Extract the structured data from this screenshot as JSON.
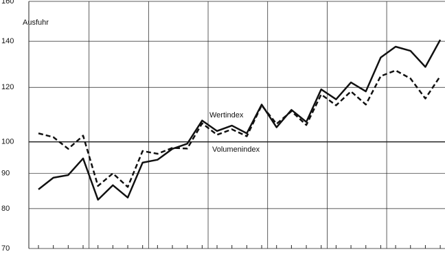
{
  "chart_data": {
    "type": "line",
    "title": "Ausfuhr",
    "categories": [
      null,
      null,
      null,
      null,
      null,
      null,
      null,
      null,
      null,
      null,
      null,
      null,
      null,
      null,
      null,
      null,
      null,
      null,
      null,
      null,
      null,
      null,
      null,
      null,
      null,
      null,
      null,
      null
    ],
    "series": [
      {
        "name": "Wertindex",
        "color": "#111111",
        "dash": false,
        "values": [
          85.3,
          88.7,
          89.5,
          94.6,
          82.4,
          86.5,
          83,
          93.3,
          94.2,
          97.7,
          99.4,
          107.4,
          103.7,
          105.6,
          102.9,
          113.3,
          105,
          111.3,
          106.9,
          119.2,
          115.3,
          122,
          118.4,
          132.6,
          137.5,
          135.6,
          128.5,
          140.7
        ]
      },
      {
        "name": "Volumenindex",
        "color": "#111111",
        "dash": true,
        "values": [
          102.9,
          101.6,
          97.7,
          102.1,
          86.3,
          90,
          86,
          97,
          96.1,
          98,
          97.8,
          106.4,
          102.4,
          104.3,
          101.9,
          113,
          106.2,
          110.8,
          105.8,
          117.2,
          113,
          118.4,
          113.3,
          124.6,
          127,
          123.6,
          115.6,
          124.6
        ]
      }
    ],
    "ylim": [
      70,
      160
    ],
    "yticks": [
      70,
      80,
      90,
      100,
      120,
      140,
      160
    ],
    "log_y": true,
    "grid": true
  }
}
